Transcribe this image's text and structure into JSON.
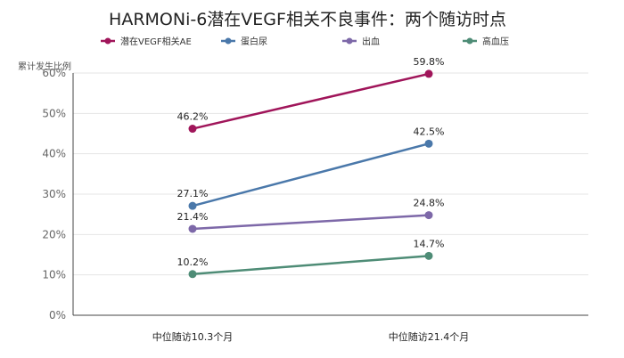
{
  "chart_data": {
    "type": "line",
    "title": "HARMONi-6潜在VEGF相关不良事件：两个随访时点",
    "ylabel": "累计发生比例",
    "xlabel": "",
    "categories": [
      "中位随访10.3个月",
      "中位随访21.4个月"
    ],
    "ylim": [
      0,
      60
    ],
    "yticks": [
      "0%",
      "10%",
      "20%",
      "30%",
      "40%",
      "50%",
      "60%"
    ],
    "grid": true,
    "legend_position": "top",
    "series": [
      {
        "name": "潜在VEGF相关AE",
        "color": "#a0155a",
        "values": [
          46.2,
          59.8
        ],
        "labels": [
          "46.2%",
          "59.8%"
        ]
      },
      {
        "name": "蛋白尿",
        "color": "#4a78aa",
        "values": [
          27.1,
          42.5
        ],
        "labels": [
          "27.1%",
          "42.5%"
        ]
      },
      {
        "name": "出血",
        "color": "#7d68a8",
        "values": [
          21.4,
          24.8
        ],
        "labels": [
          "21.4%",
          "24.8%"
        ]
      },
      {
        "name": "高血压",
        "color": "#4e8c76",
        "values": [
          10.2,
          14.7
        ],
        "labels": [
          "10.2%",
          "14.7%"
        ]
      }
    ]
  }
}
